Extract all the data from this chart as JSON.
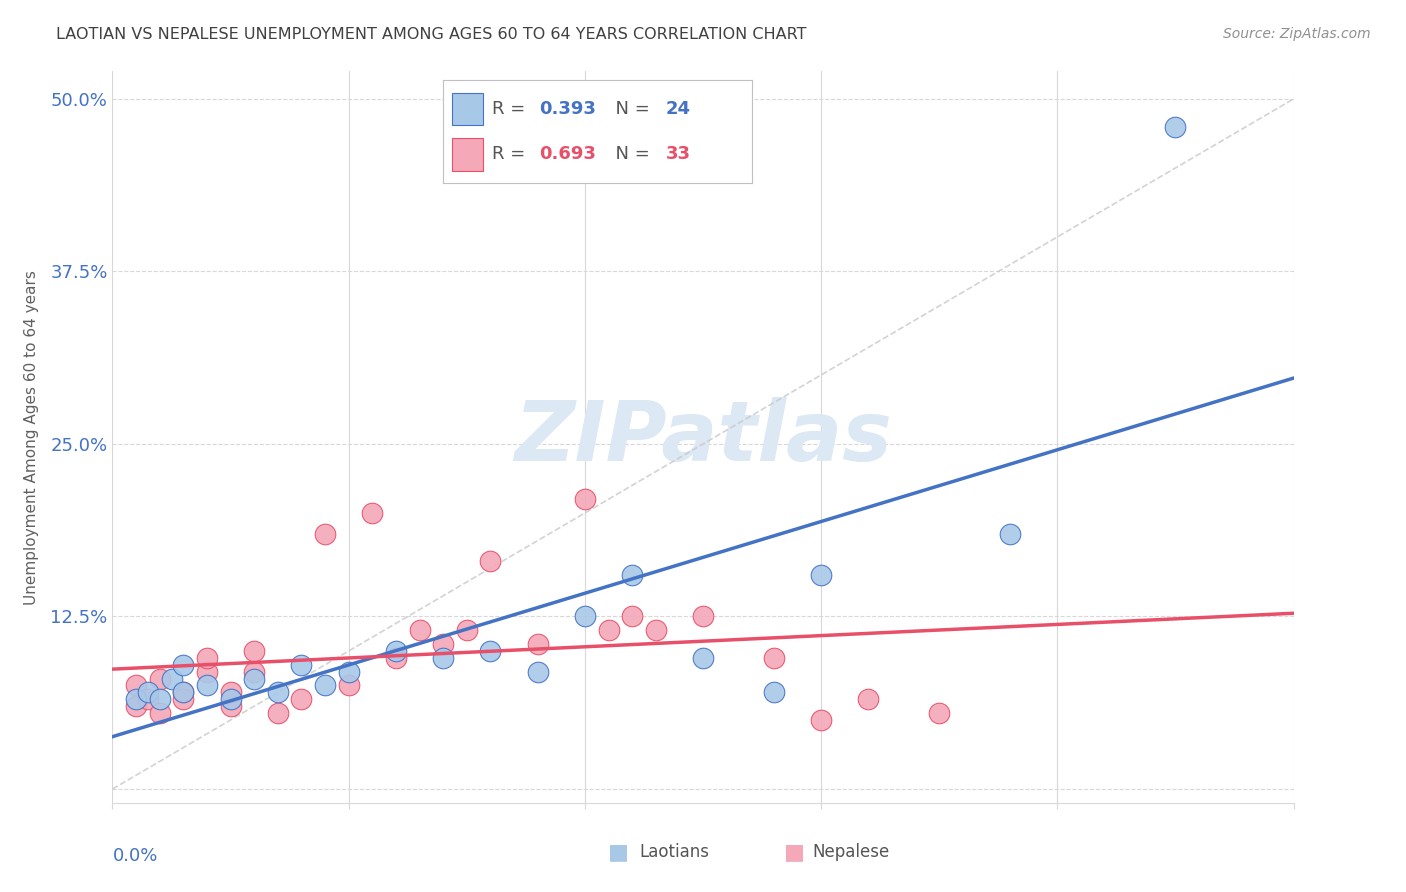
{
  "title": "LAOTIAN VS NEPALESE UNEMPLOYMENT AMONG AGES 60 TO 64 YEARS CORRELATION CHART",
  "source": "Source: ZipAtlas.com",
  "ylabel": "Unemployment Among Ages 60 to 64 years",
  "xlim": [
    0.0,
    0.05
  ],
  "ylim": [
    -0.01,
    0.52
  ],
  "ytick_vals": [
    0.0,
    0.125,
    0.25,
    0.375,
    0.5
  ],
  "ytick_labels": [
    "",
    "12.5%",
    "25.0%",
    "37.5%",
    "50.0%"
  ],
  "xtick_vals": [
    0.0,
    0.01,
    0.02,
    0.03,
    0.04,
    0.05
  ],
  "laotian_R": 0.393,
  "laotian_N": 24,
  "nepalese_R": 0.693,
  "nepalese_N": 33,
  "laotian_color": "#a8c8e8",
  "nepalese_color": "#f4a8b8",
  "laotian_line_color": "#4472c4",
  "nepalese_line_color": "#e8506a",
  "diagonal_color": "#c8c8c8",
  "bg_color": "#ffffff",
  "watermark_color": "#dce8f4",
  "grid_color": "#d8d8d8",
  "title_color": "#404040",
  "label_color": "#4472c4",
  "ylabel_color": "#606060",
  "source_color": "#909090",
  "laotian_x": [
    0.001,
    0.0015,
    0.002,
    0.0025,
    0.003,
    0.003,
    0.004,
    0.005,
    0.006,
    0.007,
    0.008,
    0.009,
    0.01,
    0.012,
    0.014,
    0.016,
    0.018,
    0.02,
    0.022,
    0.025,
    0.028,
    0.03,
    0.038,
    0.045
  ],
  "laotian_y": [
    0.065,
    0.07,
    0.065,
    0.08,
    0.07,
    0.09,
    0.075,
    0.065,
    0.08,
    0.07,
    0.09,
    0.075,
    0.085,
    0.1,
    0.095,
    0.1,
    0.085,
    0.125,
    0.155,
    0.095,
    0.07,
    0.155,
    0.185,
    0.48
  ],
  "nepalese_x": [
    0.001,
    0.001,
    0.0015,
    0.002,
    0.002,
    0.003,
    0.003,
    0.004,
    0.004,
    0.005,
    0.005,
    0.006,
    0.006,
    0.007,
    0.008,
    0.009,
    0.01,
    0.011,
    0.012,
    0.013,
    0.014,
    0.015,
    0.016,
    0.018,
    0.02,
    0.021,
    0.022,
    0.023,
    0.025,
    0.028,
    0.03,
    0.032,
    0.035
  ],
  "nepalese_y": [
    0.06,
    0.075,
    0.065,
    0.055,
    0.08,
    0.07,
    0.065,
    0.085,
    0.095,
    0.06,
    0.07,
    0.085,
    0.1,
    0.055,
    0.065,
    0.185,
    0.075,
    0.2,
    0.095,
    0.115,
    0.105,
    0.115,
    0.165,
    0.105,
    0.21,
    0.115,
    0.125,
    0.115,
    0.125,
    0.095,
    0.05,
    0.065,
    0.055
  ]
}
